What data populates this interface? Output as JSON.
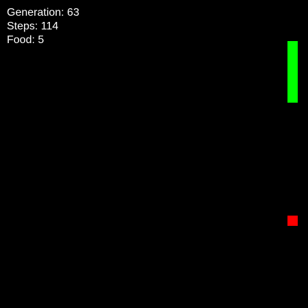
{
  "hud": {
    "generation_label": "Generation: 63",
    "steps_label": "Steps: 114",
    "food_label": "Food: 5"
  },
  "colors": {
    "background": "#000000",
    "snake": "#00ff00",
    "food": "#ff0000",
    "text": "#ffffff"
  }
}
